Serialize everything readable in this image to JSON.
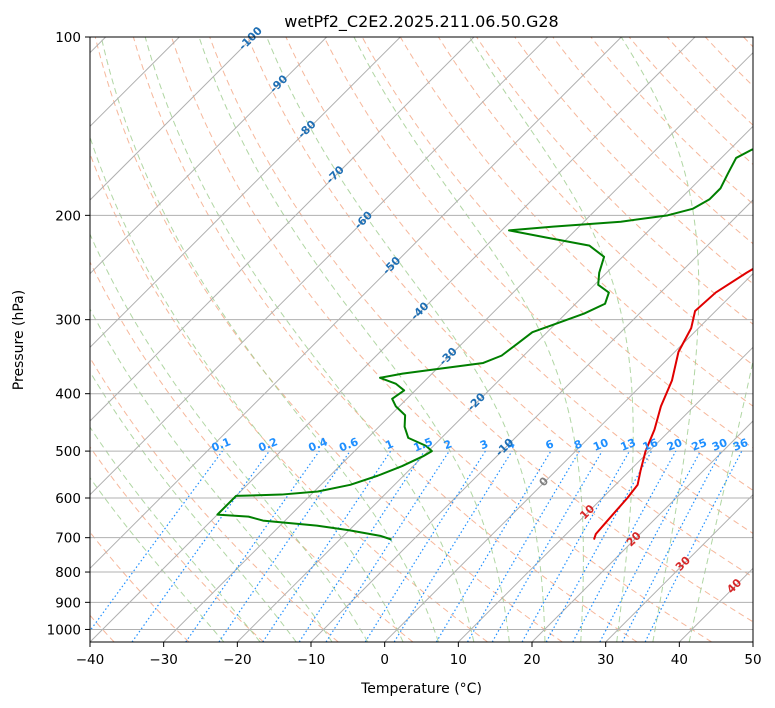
{
  "chart_data": {
    "type": "line",
    "subtype": "skew-t log-p",
    "title": "wetPf2_C2E2.2025.211.06.50.G28",
    "xlabel": "Temperature (°C)",
    "ylabel": "Pressure (hPa)",
    "xlim": [
      -40,
      50
    ],
    "ylim": [
      1050,
      100
    ],
    "y_scale": "log",
    "grid": true,
    "x_ticks": [
      -40,
      -30,
      -20,
      -10,
      0,
      10,
      20,
      30,
      40,
      50
    ],
    "y_ticks": [
      100,
      200,
      300,
      400,
      500,
      600,
      700,
      800,
      900,
      1000
    ],
    "series": [
      {
        "color": "#e00000",
        "points": [
          [
            14.5,
            705
          ],
          [
            14.0,
            690
          ],
          [
            13.8,
            660
          ],
          [
            13.6,
            630
          ],
          [
            13.4,
            600
          ],
          [
            13.0,
            570
          ],
          [
            11.5,
            540
          ],
          [
            9.5,
            500
          ],
          [
            7.8,
            460
          ],
          [
            5.5,
            420
          ],
          [
            3.5,
            380
          ],
          [
            0.5,
            340
          ],
          [
            -1.0,
            310
          ],
          [
            -2.8,
            290
          ],
          [
            -2.5,
            270
          ],
          [
            -1.0,
            250
          ],
          [
            0.5,
            235
          ],
          [
            2.5,
            222
          ],
          [
            3.5,
            210
          ],
          [
            3.6,
            200
          ],
          [
            2.8,
            185
          ],
          [
            2.0,
            165
          ],
          [
            1.3,
            150
          ],
          [
            0.5,
            135
          ],
          [
            -0.5,
            125
          ],
          [
            -1.0,
            118
          ],
          [
            0.5,
            112
          ],
          [
            2.0,
            107
          ],
          [
            3.0,
            103
          ],
          [
            3.5,
            100
          ]
        ]
      },
      {
        "color": "#007f00",
        "points": [
          [
            -13.0,
            705
          ],
          [
            -15.0,
            695
          ],
          [
            -20.0,
            680
          ],
          [
            -25.0,
            668
          ],
          [
            -30.0,
            660
          ],
          [
            -33.0,
            655
          ],
          [
            -35.5,
            645
          ],
          [
            -40.0,
            640
          ],
          [
            -40.0,
            595
          ],
          [
            -34.0,
            592
          ],
          [
            -29.5,
            585
          ],
          [
            -26.0,
            570
          ],
          [
            -23.5,
            550
          ],
          [
            -21.5,
            530
          ],
          [
            -20.0,
            510
          ],
          [
            -19.5,
            500
          ],
          [
            -21.0,
            490
          ],
          [
            -24.5,
            475
          ],
          [
            -26.5,
            455
          ],
          [
            -28.0,
            435
          ],
          [
            -30.5,
            420
          ],
          [
            -32.0,
            408
          ],
          [
            -31.5,
            395
          ],
          [
            -33.5,
            385
          ],
          [
            -36.5,
            376
          ],
          [
            -34.0,
            370
          ],
          [
            -29.0,
            362
          ],
          [
            -24.5,
            355
          ],
          [
            -23.0,
            345
          ],
          [
            -22.5,
            330
          ],
          [
            -22.0,
            315
          ],
          [
            -20.0,
            305
          ],
          [
            -17.5,
            293
          ],
          [
            -16.0,
            282
          ],
          [
            -17.0,
            270
          ],
          [
            -19.5,
            262
          ],
          [
            -21.0,
            250
          ],
          [
            -22.5,
            235
          ],
          [
            -26.0,
            225
          ],
          [
            -33.0,
            218
          ],
          [
            -39.0,
            212
          ],
          [
            -33.5,
            209
          ],
          [
            -25.0,
            205
          ],
          [
            -19.5,
            200
          ],
          [
            -17.0,
            195
          ],
          [
            -16.0,
            188
          ],
          [
            -16.0,
            180
          ],
          [
            -17.0,
            170
          ],
          [
            -18.0,
            160
          ],
          [
            -17.0,
            155
          ],
          [
            -14.5,
            150
          ],
          [
            -12.5,
            140
          ],
          [
            -11.0,
            130
          ],
          [
            -10.5,
            120
          ],
          [
            -10.0,
            112
          ],
          [
            -9.5,
            105
          ],
          [
            -8.5,
            100
          ]
        ]
      }
    ],
    "dry_adiabats_C": [
      -70,
      -60,
      -50,
      -40,
      -30,
      -20,
      -10,
      0,
      10,
      20,
      30,
      40,
      50,
      60,
      70,
      80,
      90,
      100,
      110,
      120,
      130,
      140,
      150,
      160,
      170,
      180,
      190,
      200,
      210,
      220,
      230,
      240
    ],
    "moist_adiabats_C": [
      -25,
      -20,
      -15,
      -10,
      -5,
      0,
      5,
      10,
      15,
      20,
      25,
      30,
      35,
      40
    ],
    "mixing_ratio_lines": [
      "0.1",
      "0.2",
      "0.4",
      "0.6",
      "1",
      "1.5",
      "2",
      "3",
      "4",
      "6",
      "8",
      "10",
      "13",
      "16",
      "20",
      "25",
      "30",
      "36"
    ],
    "isotherm_labels": [
      "-100",
      "-90",
      "-80",
      "-70",
      "-60",
      "-50",
      "-40",
      "-30",
      "-20",
      "-10",
      "0",
      "10",
      "20",
      "30",
      "40"
    ],
    "colors": {
      "temperature": "#e00000",
      "dewpoint": "#007f00",
      "isotherm_labels_cold": "#1f6fb4",
      "isotherm_labels_warm": "#d62728",
      "isotherm_label_zero": "#808080",
      "mixing_ratio": "#1e8fff",
      "dry_adiabat": "#f4a582",
      "moist_adiabat": "#9ccc8c",
      "background_curve": "#d2b48c",
      "grid": "#b0b0b0"
    }
  }
}
